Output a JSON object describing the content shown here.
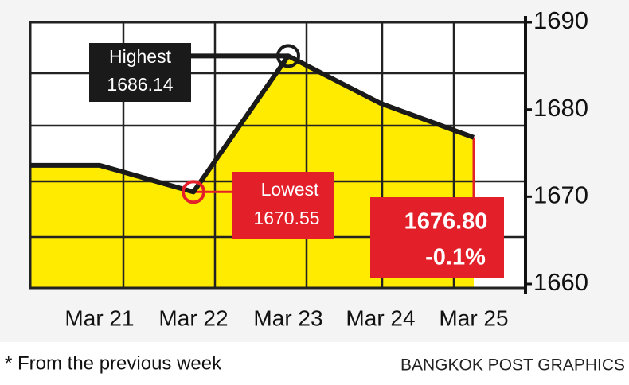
{
  "chart_data": {
    "type": "line",
    "categories": [
      null,
      "Mar 21",
      "Mar 22",
      "Mar 23",
      "Mar 24",
      "Mar 25"
    ],
    "values": [
      1673.6,
      1673.6,
      1670.55,
      1686.14,
      1680.7,
      1676.8
    ],
    "color": "#1a1a1a",
    "fill": "#ffeb00",
    "ylim": [
      1660,
      1690
    ],
    "yticks": [
      1660,
      1670,
      1680,
      1690
    ],
    "annotations": {
      "highest": {
        "label": "Highest",
        "value": "1686.14"
      },
      "lowest": {
        "label": "Lowest",
        "value": "1670.55"
      },
      "last": {
        "value": "1676.80",
        "change": "-0.1%"
      }
    },
    "footnote": "* From the previous week",
    "credit": "BANGKOK POST GRAPHICS"
  }
}
